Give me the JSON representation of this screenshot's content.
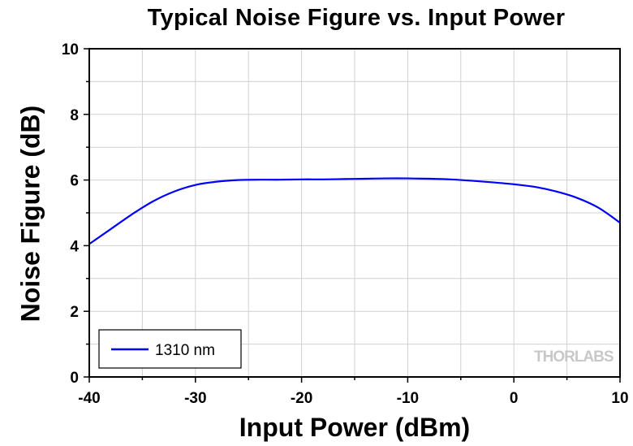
{
  "chart_data": {
    "type": "line",
    "title": "Typical Noise Figure vs. Input Power",
    "xlabel": "Input Power (dBm)",
    "ylabel": "Noise Figure (dB)",
    "xlim": [
      -40,
      10
    ],
    "ylim": [
      0,
      10
    ],
    "x_ticks": [
      -40,
      -30,
      -20,
      -10,
      0,
      10
    ],
    "y_ticks": [
      0,
      2,
      4,
      6,
      8,
      10
    ],
    "grid": true,
    "legend_position": "bottom-left",
    "series": [
      {
        "name": "1310 nm",
        "color": "#0000ff",
        "x": [
          -40,
          -38,
          -36,
          -34,
          -32,
          -30,
          -28,
          -26,
          -24,
          -22,
          -20,
          -18,
          -16,
          -14,
          -12,
          -10,
          -8,
          -6,
          -4,
          -2,
          0,
          2,
          4,
          6,
          8,
          10
        ],
        "y": [
          4.05,
          4.5,
          4.95,
          5.35,
          5.65,
          5.85,
          5.95,
          6.0,
          6.01,
          6.01,
          6.02,
          6.02,
          6.03,
          6.04,
          6.05,
          6.05,
          6.04,
          6.02,
          5.98,
          5.93,
          5.87,
          5.79,
          5.65,
          5.45,
          5.15,
          4.7
        ]
      }
    ],
    "watermark": "THORLABS"
  }
}
